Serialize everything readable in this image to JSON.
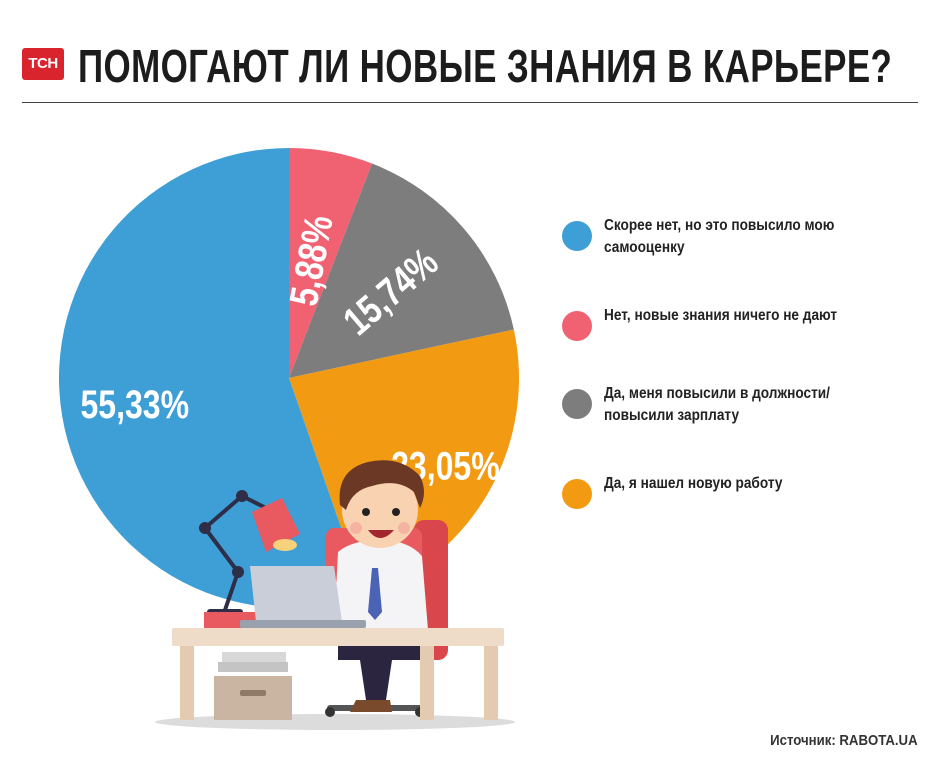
{
  "header": {
    "logo_text": "ТСН",
    "title": "ПОМОГАЮТ ЛИ НОВЫЕ ЗНАНИЯ В КАРЬЕРЕ?"
  },
  "chart_data": {
    "type": "pie",
    "title": "ПОМОГАЮТ ЛИ НОВЫЕ ЗНАНИЯ В КАРЬЕРЕ?",
    "categories": [
      "Нет, новые знания ничего не дают",
      "Да, меня повысили в должности/ повысили зарплату",
      "Да, я нашел новую работу",
      "Скорее нет, но это повысило мою самооценку"
    ],
    "values": [
      5.88,
      15.74,
      23.05,
      55.33
    ],
    "labels": [
      "5,88%",
      "15,74%",
      "23,05%",
      "55,33%"
    ],
    "colors": [
      "#f06272",
      "#7d7d7d",
      "#f39a13",
      "#3e9ed6"
    ],
    "start": "12 o'clock, clockwise",
    "legend_position": "right"
  },
  "legend": [
    {
      "text": "Скорее нет, но это повысило мою самооценку",
      "color": "#3e9ed6"
    },
    {
      "text": "Нет, новые знания ничего не дают",
      "color": "#f06272"
    },
    {
      "text": "Да, меня повысили в должности/ повысили зарплату",
      "color": "#7d7d7d"
    },
    {
      "text": "Да, я нашел новую работу",
      "color": "#f39a13"
    }
  ],
  "source": "Источник: RABOTA.UA"
}
